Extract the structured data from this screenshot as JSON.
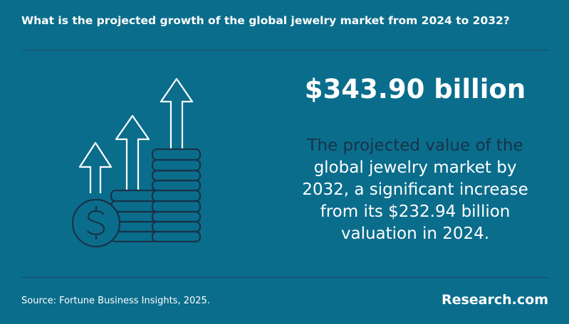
{
  "header": {
    "title": "What is the projected growth of the global jewelry market from 2024 to 2032?"
  },
  "highlight": {
    "value": "$343.90 billion",
    "description_lead": "The projected value of the",
    "description_rest": "global jewelry market by 2032, a significant increase from its $232.94 billion valuation in 2024."
  },
  "footer": {
    "source": "Source: Fortune Business Insights, 2025.",
    "brand": "Research.com"
  }
}
